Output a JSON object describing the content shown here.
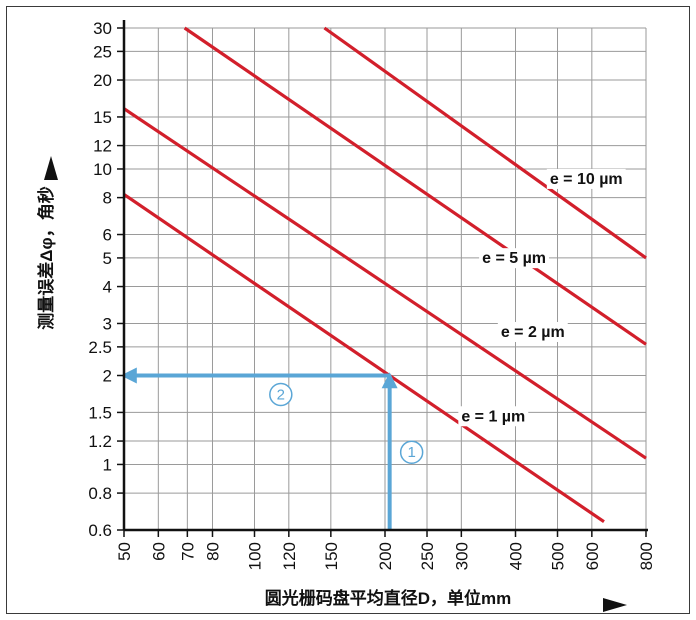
{
  "chart_data": {
    "type": "line",
    "xscale": "log",
    "yscale": "log",
    "xlim": [
      50,
      800
    ],
    "ylim": [
      0.6,
      30
    ],
    "grid": true,
    "xlabel": "圆光栅码盘平均直径D，单位mm",
    "ylabel": "测量误差Δφ，角秒",
    "xticks": [
      50,
      60,
      70,
      80,
      100,
      120,
      150,
      200,
      250,
      300,
      400,
      500,
      600,
      800
    ],
    "yticks": [
      0.6,
      0.8,
      1,
      1.2,
      1.5,
      2,
      2.5,
      3,
      4,
      5,
      6,
      8,
      10,
      12,
      15,
      20,
      25,
      30
    ],
    "series": [
      {
        "name": "e = 1 µm",
        "x": [
          50,
          640
        ],
        "y": [
          8.2,
          0.64
        ]
      },
      {
        "name": "e = 2 µm",
        "x": [
          50,
          800
        ],
        "y": [
          16,
          1.05
        ]
      },
      {
        "name": "e = 5 µm",
        "x": [
          69,
          800
        ],
        "y": [
          30,
          2.55
        ]
      },
      {
        "name": "e = 10 µm",
        "x": [
          145,
          800
        ],
        "y": [
          30,
          5.0
        ]
      }
    ],
    "annotations": [
      {
        "label": "1",
        "from": [
          205,
          0.6
        ],
        "to": [
          205,
          2
        ]
      },
      {
        "label": "2",
        "from": [
          205,
          2
        ],
        "to": [
          50,
          2
        ]
      }
    ],
    "line_color": "#d21f2b",
    "arrow_color": "#5aa6d6"
  }
}
